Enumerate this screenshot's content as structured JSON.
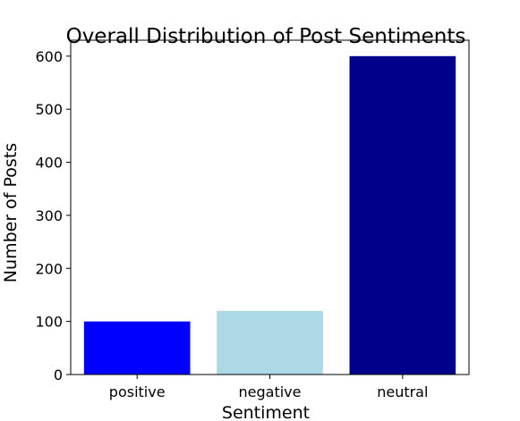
{
  "chart_data": {
    "type": "bar",
    "title": "Overall Distribution of Post Sentiments",
    "xlabel": "Sentiment",
    "ylabel": "Number of Posts",
    "categories": [
      "positive",
      "negative",
      "neutral"
    ],
    "values": [
      100,
      120,
      600
    ],
    "colors": [
      "#0000ff",
      "#add8e6",
      "#00008b"
    ],
    "ylim": [
      0,
      630
    ],
    "yticks": [
      0,
      100,
      200,
      300,
      400,
      500,
      600
    ],
    "grid": false,
    "legend": "none"
  }
}
